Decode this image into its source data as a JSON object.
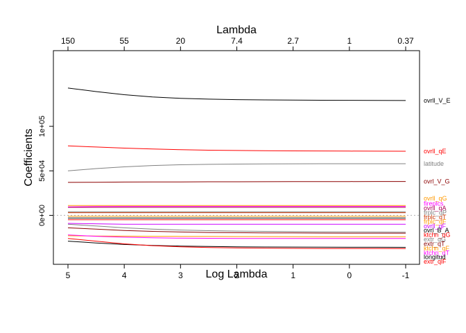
{
  "chart_data": {
    "type": "line",
    "xlabel": "Log Lambda",
    "ylabel": "Coefficients",
    "top_axis_label": "Lambda",
    "x_reversed": true,
    "xlim": [
      5,
      -1
    ],
    "ylim": [
      -55000,
      185000
    ],
    "x_ticks": [
      "5",
      "4",
      "3",
      "2",
      "1",
      "0",
      "-1"
    ],
    "x_tick_values": [
      5,
      4,
      3,
      2,
      1,
      0,
      -1
    ],
    "top_ticks": [
      "150",
      "55",
      "20",
      "7.4",
      "2.7",
      "1",
      "0.37"
    ],
    "top_tick_values": [
      5,
      4,
      3,
      2,
      1,
      0,
      -1
    ],
    "y_ticks": [
      "0e+00",
      "5e+04",
      "1e+05"
    ],
    "y_tick_values": [
      0,
      50000,
      100000
    ],
    "zero_line": true,
    "x": [
      5,
      4.5,
      4,
      3.5,
      3,
      2.5,
      2,
      1.5,
      1,
      0.5,
      0,
      -0.5,
      -1
    ],
    "series": [
      {
        "name": "ovrll_V_E",
        "color": "#000000",
        "label_y": 129000,
        "values": [
          143000,
          139000,
          135500,
          133000,
          131500,
          130500,
          130000,
          129700,
          129500,
          129300,
          129200,
          129100,
          129000
        ]
      },
      {
        "name": "ovrll_qE",
        "color": "#ff0000",
        "label_y": 72000,
        "values": [
          78000,
          76800,
          75500,
          74500,
          73700,
          73200,
          72900,
          72600,
          72400,
          72300,
          72200,
          72100,
          72000
        ]
      },
      {
        "name": "latitude",
        "color": "#808080",
        "label_y": 58000,
        "values": [
          50000,
          52500,
          54500,
          56000,
          56800,
          57300,
          57600,
          57800,
          57900,
          57950,
          58000,
          58000,
          58000
        ]
      },
      {
        "name": "ovrl_V_G",
        "color": "#8b0000",
        "label_y": 38000,
        "values": [
          37000,
          37200,
          37400,
          37500,
          37600,
          37700,
          37750,
          37800,
          37850,
          37900,
          37950,
          38000,
          38000
        ]
      },
      {
        "name": "ovrll_qG",
        "color": "#ff9900",
        "label_y": 19000,
        "values": [
          11000,
          11000,
          11000,
          11000,
          11000,
          11000,
          11000,
          11000,
          11000,
          11000,
          11000,
          11000,
          11000
        ]
      },
      {
        "name": "fireplcs",
        "color": "#ff00ff",
        "label_y": 13000,
        "values": [
          9500,
          9800,
          10000,
          10000,
          10000,
          10000,
          10000,
          10000,
          10000,
          10000,
          10000,
          10000,
          10000
        ]
      },
      {
        "name": "ovrll_qA",
        "color": "#aa0055",
        "label_y": 8000,
        "values": [
          9000,
          9000,
          9000,
          9000,
          9000,
          9000,
          9000,
          9000,
          9000,
          9000,
          9000,
          9000,
          9000
        ]
      },
      {
        "name": "frplc_qP",
        "color": "#808080",
        "label_y": 3000,
        "values": [
          4000,
          4000,
          4000,
          4000,
          4000,
          4000,
          4000,
          4000,
          4000,
          4000,
          4000,
          4000,
          4000
        ]
      },
      {
        "name": "frplc_qT",
        "color": "#cc3300",
        "label_y": -2000,
        "values": [
          3000,
          3000,
          3000,
          3000,
          3000,
          3000,
          3000,
          3000,
          3000,
          3000,
          3000,
          3000,
          3000
        ]
      },
      {
        "name": "frplc_qF",
        "color": "#ff9900",
        "label_y": -7000,
        "values": [
          -1000,
          -1000,
          -1000,
          -1000,
          -1000,
          -1000,
          -1000,
          -1000,
          -1000,
          -1000,
          -1000,
          -1000,
          -1000
        ]
      },
      {
        "name": "ovrll_qF",
        "color": "#cc00ff",
        "label_y": -12000,
        "values": [
          -9000,
          -9500,
          -10000,
          -10000,
          -10000,
          -10000,
          -10000,
          -10000,
          -10000,
          -10000,
          -10000,
          -10000,
          -10000
        ]
      },
      {
        "name": "ovrl_B_A",
        "color": "#000000",
        "label_y": -17000,
        "values": [
          -3000,
          -3000,
          -3000,
          -3000,
          -3000,
          -3000,
          -3000,
          -3000,
          -3000,
          -3000,
          -3000,
          -3000,
          -3000
        ]
      },
      {
        "name": "ktchn_qG",
        "color": "#ff0000",
        "label_y": -22000,
        "values": [
          -5000,
          -5000,
          -5000,
          -5000,
          -5000,
          -5000,
          -5000,
          -5000,
          -5000,
          -5000,
          -5000,
          -5000,
          -5000
        ]
      },
      {
        "name": "extr_qG",
        "color": "#808080",
        "label_y": -27000,
        "values": [
          -10000,
          -12000,
          -14000,
          -15500,
          -16500,
          -17200,
          -17700,
          -18000,
          -18300,
          -18500,
          -18700,
          -18800,
          -18900
        ]
      },
      {
        "name": "extr_qT",
        "color": "#8b0000",
        "label_y": -32000,
        "values": [
          -14000,
          -15500,
          -17000,
          -18000,
          -18700,
          -19200,
          -19500,
          -19700,
          -19800,
          -19900,
          -20000,
          -20000,
          -20000
        ]
      },
      {
        "name": "ktchn_qF",
        "color": "#ff9900",
        "label_y": -37000,
        "values": [
          -23000,
          -23200,
          -23400,
          -23500,
          -23600,
          -23700,
          -23800,
          -23850,
          -23900,
          -23950,
          -24000,
          -24000,
          -24000
        ]
      },
      {
        "name": "ktchn_qT",
        "color": "#ff00ff",
        "label_y": -42000,
        "values": [
          -22000,
          -23500,
          -24500,
          -25200,
          -25600,
          -25800,
          -25900,
          -26000,
          -26000,
          -26000,
          -26000,
          -26000,
          -26000
        ]
      },
      {
        "name": "longitud",
        "color": "#000000",
        "label_y": -47000,
        "values": [
          -29000,
          -31000,
          -32700,
          -33800,
          -34500,
          -35000,
          -35300,
          -35500,
          -35600,
          -35700,
          -35800,
          -35800,
          -35900
        ]
      },
      {
        "name": "extr_qlF",
        "color": "#ff0000",
        "label_y": -52000,
        "values": [
          -26000,
          -29000,
          -32000,
          -34000,
          -35300,
          -36100,
          -36600,
          -36900,
          -37100,
          -37200,
          -37300,
          -37300,
          -37400
        ]
      }
    ]
  }
}
